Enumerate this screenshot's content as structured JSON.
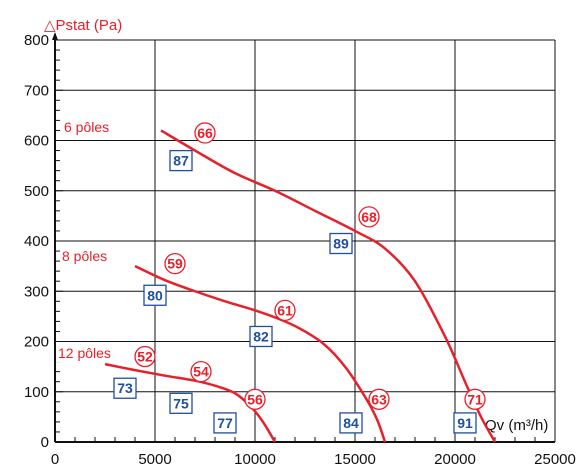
{
  "chart_data": {
    "type": "line",
    "ylabel": "△Pstat (Pa)",
    "xlabel": "Qv (m³/h)",
    "xlim": [
      0,
      25000
    ],
    "ylim": [
      0,
      800
    ],
    "x_ticks": [
      0,
      5000,
      10000,
      15000,
      20000,
      25000
    ],
    "y_ticks": [
      0,
      100,
      200,
      300,
      400,
      500,
      600,
      700,
      800
    ],
    "grid": true,
    "series": [
      {
        "name": "6 pôles",
        "color": "#e8202a",
        "points": [
          [
            5300,
            620
          ],
          [
            7000,
            580
          ],
          [
            9000,
            535
          ],
          [
            11000,
            500
          ],
          [
            13000,
            460
          ],
          [
            15000,
            420
          ],
          [
            16500,
            385
          ],
          [
            18000,
            320
          ],
          [
            19500,
            210
          ],
          [
            20500,
            120
          ],
          [
            21300,
            50
          ],
          [
            22000,
            0
          ]
        ]
      },
      {
        "name": "8 pôles",
        "color": "#e8202a",
        "points": [
          [
            4000,
            350
          ],
          [
            5500,
            322
          ],
          [
            7000,
            300
          ],
          [
            8500,
            280
          ],
          [
            10000,
            262
          ],
          [
            11500,
            240
          ],
          [
            12500,
            220
          ],
          [
            13500,
            193
          ],
          [
            14500,
            150
          ],
          [
            15500,
            90
          ],
          [
            16100,
            45
          ],
          [
            16500,
            0
          ]
        ]
      },
      {
        "name": "12 pôles",
        "color": "#e8202a",
        "points": [
          [
            2500,
            155
          ],
          [
            4000,
            143
          ],
          [
            5500,
            132
          ],
          [
            7000,
            122
          ],
          [
            8000,
            112
          ],
          [
            9000,
            97
          ],
          [
            9800,
            70
          ],
          [
            10400,
            40
          ],
          [
            11000,
            0
          ]
        ]
      }
    ],
    "circle_labels": [
      {
        "text": "66",
        "x": 7500,
        "y": 615
      },
      {
        "text": "68",
        "x": 15700,
        "y": 448
      },
      {
        "text": "59",
        "x": 6000,
        "y": 355
      },
      {
        "text": "61",
        "x": 11500,
        "y": 262
      },
      {
        "text": "52",
        "x": 4500,
        "y": 170
      },
      {
        "text": "54",
        "x": 7300,
        "y": 140
      },
      {
        "text": "56",
        "x": 10000,
        "y": 85
      },
      {
        "text": "63",
        "x": 16200,
        "y": 85
      },
      {
        "text": "71",
        "x": 21000,
        "y": 85
      }
    ],
    "box_labels": [
      {
        "text": "87",
        "x": 6300,
        "y": 560
      },
      {
        "text": "89",
        "x": 14300,
        "y": 395
      },
      {
        "text": "80",
        "x": 5000,
        "y": 292
      },
      {
        "text": "82",
        "x": 10300,
        "y": 210
      },
      {
        "text": "73",
        "x": 3500,
        "y": 107
      },
      {
        "text": "75",
        "x": 6300,
        "y": 77
      },
      {
        "text": "77",
        "x": 8500,
        "y": 38
      },
      {
        "text": "84",
        "x": 14800,
        "y": 38
      },
      {
        "text": "91",
        "x": 20500,
        "y": 38
      }
    ]
  }
}
